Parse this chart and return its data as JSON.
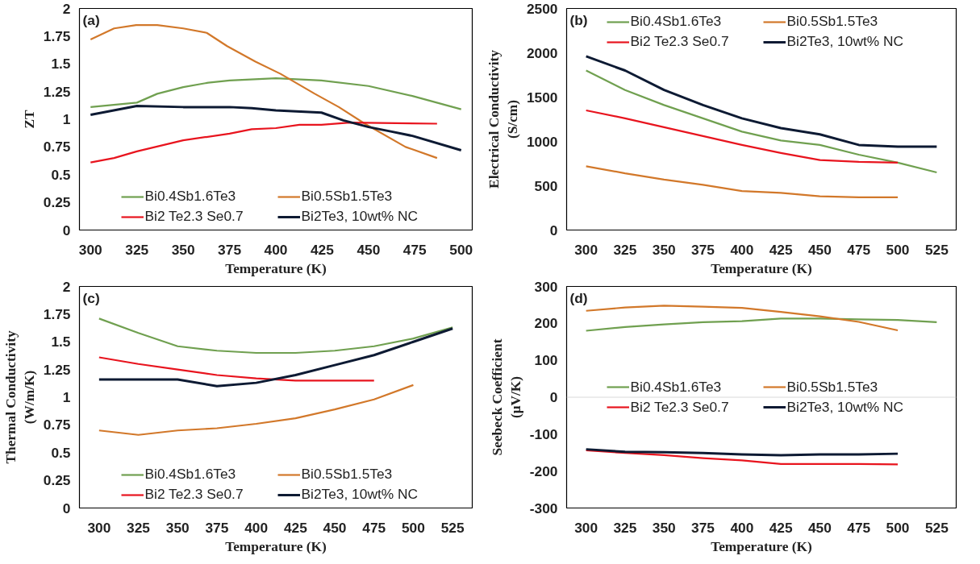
{
  "chart_data": [
    {
      "type": "line",
      "ylabel": "ZT",
      "xlabel": "Temperature (K)",
      "annotations": [
        "(a)"
      ],
      "xlim": [
        294,
        506
      ],
      "xticks": [
        300,
        325,
        350,
        375,
        400,
        425,
        450,
        475,
        500
      ],
      "ylim": [
        0,
        2
      ],
      "yticks": [
        0,
        0.25,
        0.5,
        0.75,
        1,
        1.25,
        1.5,
        1.75,
        2
      ],
      "legend": "bottom",
      "grid": false,
      "series": [
        {
          "name": "Bi0.4Sb1.6Te3",
          "color": "#70a050",
          "x": [
            300,
            325,
            336,
            350,
            363.5,
            375,
            400,
            424.6,
            450,
            473.7,
            500
          ],
          "values": [
            1.11,
            1.15,
            1.23,
            1.29,
            1.33,
            1.35,
            1.37,
            1.35,
            1.3,
            1.21,
            1.09
          ]
        },
        {
          "name": "Bi0.5Sb1.5Te3",
          "color": "#d2782a",
          "x": [
            300,
            312.7,
            324.6,
            336,
            350,
            362.7,
            373.7,
            389,
            402.5,
            421,
            434,
            448,
            470,
            487
          ],
          "values": [
            1.72,
            1.82,
            1.85,
            1.85,
            1.82,
            1.78,
            1.66,
            1.52,
            1.41,
            1.23,
            1.11,
            0.96,
            0.75,
            0.65
          ]
        },
        {
          "name": "Bi2 Te2.3 Se0.7",
          "color": "#e8141e",
          "x": [
            300,
            312.7,
            325,
            350,
            375,
            387,
            400,
            412.7,
            424.6,
            440,
            487
          ],
          "values": [
            0.61,
            0.65,
            0.71,
            0.81,
            0.87,
            0.91,
            0.92,
            0.95,
            0.95,
            0.97,
            0.96
          ]
        },
        {
          "name": "Bi2Te3, 10wt% NC",
          "color": "#0d1a33",
          "x": [
            300,
            325,
            350,
            375,
            387,
            400,
            424.6,
            436.4,
            450,
            462,
            473.7,
            500
          ],
          "values": [
            1.04,
            1.12,
            1.11,
            1.11,
            1.1,
            1.08,
            1.06,
            0.99,
            0.93,
            0.89,
            0.85,
            0.72
          ]
        }
      ]
    },
    {
      "type": "line",
      "ylabel": "Electrical Conductivity (S/cm)",
      "xlabel": "Temperature (K)",
      "annotations": [
        "(b)"
      ],
      "xlim": [
        287.5,
        537.5
      ],
      "xticks": [
        300,
        325,
        350,
        375,
        400,
        425,
        450,
        475,
        500,
        525
      ],
      "ylim": [
        0,
        2500
      ],
      "yticks": [
        0,
        500,
        1000,
        1500,
        2000,
        2500
      ],
      "legend": "top",
      "grid": false,
      "series": [
        {
          "name": "Bi0.4Sb1.6Te3",
          "color": "#70a050",
          "x": [
            300,
            325,
            350,
            375,
            400,
            425,
            450,
            475,
            500,
            525
          ],
          "values": [
            1800,
            1580,
            1410,
            1260,
            1110,
            1010,
            960,
            850,
            760,
            650
          ]
        },
        {
          "name": "Bi0.5Sb1.5Te3",
          "color": "#d2782a",
          "x": [
            300,
            325,
            350,
            375,
            400,
            425,
            450,
            475,
            500
          ],
          "values": [
            720,
            640,
            570,
            510,
            440,
            420,
            380,
            370,
            370
          ]
        },
        {
          "name": "Bi2 Te2.3 Se0.7",
          "color": "#e8141e",
          "x": [
            300,
            325,
            350,
            375,
            400,
            425,
            450,
            475,
            500
          ],
          "values": [
            1350,
            1260,
            1160,
            1060,
            960,
            870,
            790,
            770,
            760
          ]
        },
        {
          "name": "Bi2Te3, 10wt% NC",
          "color": "#0d1a33",
          "x": [
            300,
            325,
            350,
            375,
            400,
            425,
            450,
            475,
            500,
            525
          ],
          "values": [
            1960,
            1800,
            1580,
            1410,
            1260,
            1150,
            1080,
            960,
            940,
            940
          ]
        }
      ]
    },
    {
      "type": "line",
      "ylabel": "Thermal Conductivity (W/m/K)",
      "xlabel": "Temperature (K)",
      "annotations": [
        "(c)"
      ],
      "xlim": [
        287.5,
        537.5
      ],
      "xticks": [
        300,
        325,
        350,
        375,
        400,
        425,
        450,
        475,
        500,
        525
      ],
      "ylim": [
        0,
        2
      ],
      "yticks": [
        0,
        0.25,
        0.5,
        0.75,
        1,
        1.25,
        1.5,
        1.75,
        2
      ],
      "legend": "bottom",
      "grid": false,
      "series": [
        {
          "name": "Bi0.4Sb1.6Te3",
          "color": "#70a050",
          "x": [
            300,
            325,
            350,
            375,
            400,
            425,
            450,
            475,
            500,
            525
          ],
          "values": [
            1.71,
            1.58,
            1.46,
            1.42,
            1.4,
            1.4,
            1.42,
            1.46,
            1.53,
            1.63
          ]
        },
        {
          "name": "Bi0.5Sb1.5Te3",
          "color": "#d2782a",
          "x": [
            300,
            325,
            350,
            375,
            400,
            425,
            450,
            475,
            500
          ],
          "values": [
            0.7,
            0.66,
            0.7,
            0.72,
            0.76,
            0.81,
            0.89,
            0.98,
            1.11
          ]
        },
        {
          "name": "Bi2 Te2.3 Se0.7",
          "color": "#e8141e",
          "x": [
            300,
            325,
            350,
            375,
            400,
            425,
            450,
            475
          ],
          "values": [
            1.36,
            1.3,
            1.25,
            1.2,
            1.17,
            1.15,
            1.15,
            1.15
          ]
        },
        {
          "name": "Bi2Te3, 10wt% NC",
          "color": "#0d1a33",
          "x": [
            300,
            325,
            350,
            375,
            400,
            425,
            450,
            475,
            500,
            525
          ],
          "values": [
            1.16,
            1.16,
            1.16,
            1.1,
            1.13,
            1.2,
            1.29,
            1.38,
            1.5,
            1.62
          ]
        }
      ]
    },
    {
      "type": "line",
      "ylabel": "Seebeck Coefficient (μV/K)",
      "xlabel": "Temperature (K)",
      "annotations": [
        "(d)"
      ],
      "xlim": [
        287.5,
        537.5
      ],
      "xticks": [
        300,
        325,
        350,
        375,
        400,
        425,
        450,
        475,
        500,
        525
      ],
      "ylim": [
        -300,
        300
      ],
      "yticks": [
        -300,
        -200,
        -100,
        0,
        100,
        200,
        300
      ],
      "legend": "center",
      "grid": false,
      "ref_lines": [
        {
          "axis": "y",
          "value": 0,
          "color": "#d9d9d9"
        }
      ],
      "series": [
        {
          "name": "Bi0.4Sb1.6Te3",
          "color": "#70a050",
          "x": [
            300,
            325,
            350,
            375,
            400,
            425,
            450,
            475,
            500,
            525
          ],
          "values": [
            180,
            190,
            197,
            203,
            206,
            213,
            213,
            211,
            209,
            203
          ]
        },
        {
          "name": "Bi0.5Sb1.5Te3",
          "color": "#d2782a",
          "x": [
            300,
            325,
            350,
            375,
            400,
            425,
            450,
            475,
            500
          ],
          "values": [
            234,
            243,
            248,
            245,
            242,
            231,
            219,
            204,
            181
          ]
        },
        {
          "name": "Bi2 Te2.3 Se0.7",
          "color": "#e8141e",
          "x": [
            300,
            325,
            350,
            375,
            400,
            425,
            450,
            475,
            500
          ],
          "values": [
            -144,
            -151,
            -157,
            -165,
            -171,
            -181,
            -181,
            -181,
            -182
          ]
        },
        {
          "name": "Bi2Te3, 10wt% NC",
          "color": "#0d1a33",
          "x": [
            300,
            325,
            350,
            375,
            400,
            425,
            450,
            475,
            500
          ],
          "values": [
            -141,
            -148,
            -149,
            -151,
            -155,
            -157,
            -155,
            -155,
            -153
          ]
        }
      ]
    }
  ]
}
